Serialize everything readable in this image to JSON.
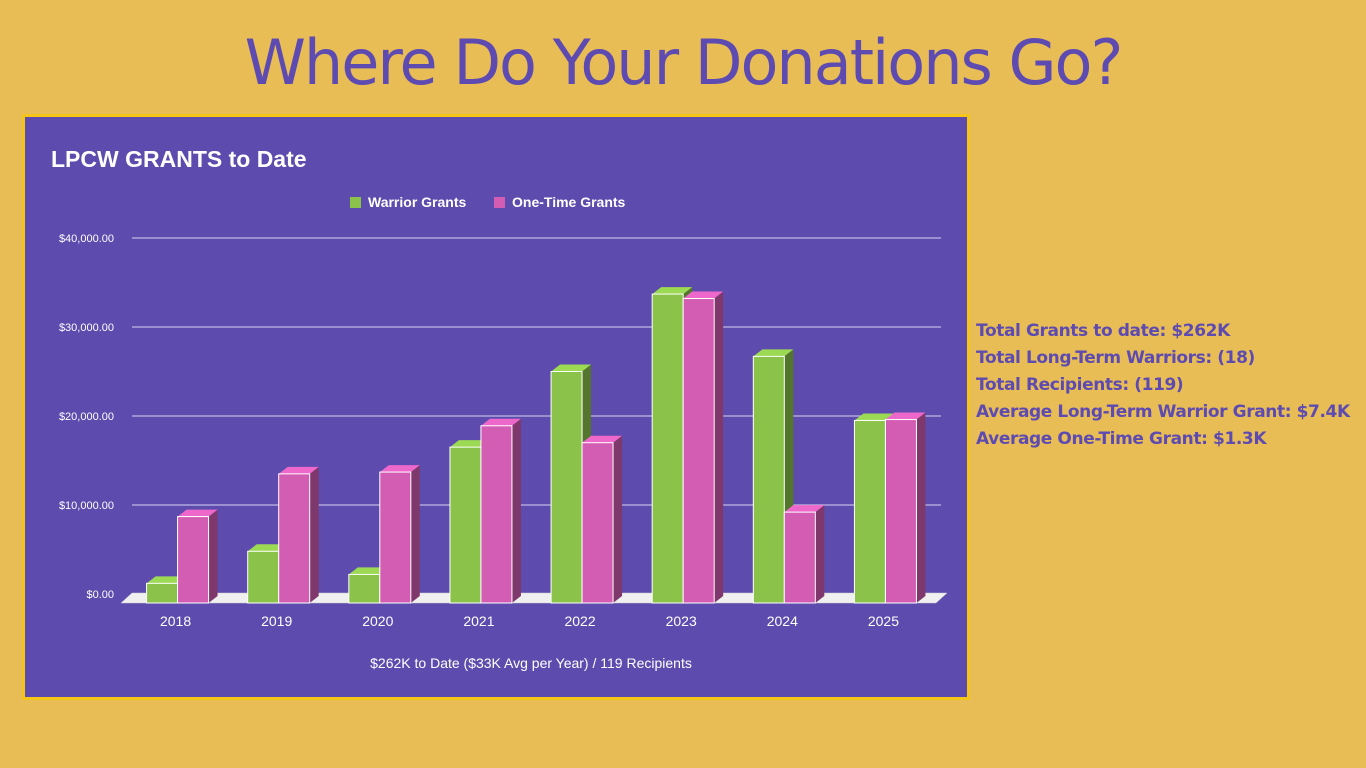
{
  "page_title": "Where Do Your Donations Go?",
  "stats": [
    "Total Grants to date: $262K",
    "Total Long-Term Warriors: (18)",
    "Total Recipients: (119)",
    "Average Long-Term Warrior Grant: $7.4K",
    "Average One-Time Grant: $1.3K"
  ],
  "colors": {
    "background": "#E8BD55",
    "panel": "#5D4CAE",
    "panel_border": "#F5C518",
    "title_text": "#5E4BB1",
    "warrior": "#8BC34A",
    "one_time": "#D45DB4"
  },
  "chart_data": {
    "type": "bar",
    "style": "3d-clustered-column",
    "title": "LPCW GRANTS to Date",
    "xlabel": "$262K to Date ($33K Avg per Year) / 119 Recipients",
    "ylabel": "",
    "categories": [
      "2018",
      "2019",
      "2020",
      "2021",
      "2022",
      "2023",
      "2024",
      "2025"
    ],
    "series": [
      {
        "name": "Warrior Grants",
        "color": "#8BC34A",
        "values": [
          1200,
          4800,
          2200,
          16500,
          25000,
          33700,
          26700,
          19500
        ]
      },
      {
        "name": "One-Time Grants",
        "color": "#D45DB4",
        "values": [
          8700,
          13500,
          13700,
          18900,
          17000,
          33200,
          9200,
          19600
        ]
      }
    ],
    "ylim": [
      0,
      40000
    ],
    "yticks": [
      0,
      10000,
      20000,
      30000,
      40000
    ],
    "ytick_labels": [
      "$0.00",
      "$10,000.00",
      "$20,000.00",
      "$30,000.00",
      "$40,000.00"
    ],
    "grid": true,
    "legend": "top-center"
  }
}
